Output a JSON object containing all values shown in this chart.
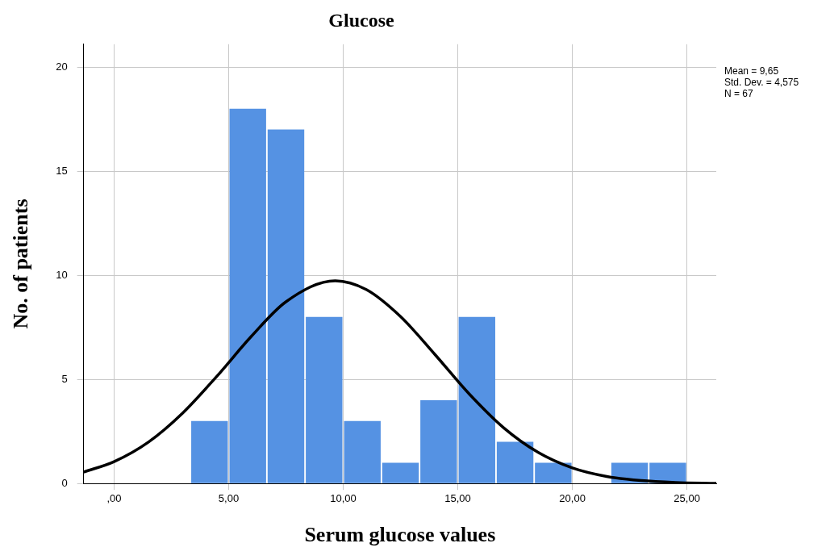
{
  "chart_data": {
    "type": "histogram",
    "title": "Glucose",
    "xlabel": "Serum glucose values",
    "ylabel": "No. of patients",
    "bins": [
      3.33,
      5,
      6.67,
      8.33,
      10,
      11.67,
      13.33,
      15,
      16.67,
      18.33,
      20,
      21.67,
      23.33,
      25
    ],
    "values": [
      3,
      18,
      17,
      8,
      3,
      1,
      4,
      8,
      2,
      1,
      0,
      1,
      1
    ],
    "color": "#5592e3",
    "series": [
      {
        "type": "line",
        "color": "#000000",
        "x": [
          -1.33,
          0,
          1.5,
          3,
          4.5,
          6,
          7.5,
          9.65,
          11,
          12.5,
          14,
          15.5,
          17,
          18.5,
          20,
          21.5,
          23,
          24.5,
          26.28
        ],
        "values": [
          0.55,
          1.05,
          1.99,
          3.39,
          5.17,
          7.08,
          8.73,
          9.74,
          9.32,
          8.02,
          6.2,
          4.3,
          2.68,
          1.5,
          0.75,
          0.34,
          0.14,
          0.05,
          0.01
        ]
      }
    ],
    "xlim": [
      -1.33,
      26.28
    ],
    "ylim": [
      0,
      21.1
    ],
    "xticks": [
      {
        "value": 0,
        "label": ",00"
      },
      {
        "value": 5,
        "label": "5,00"
      },
      {
        "value": 10,
        "label": "10,00"
      },
      {
        "value": 15,
        "label": "15,00"
      },
      {
        "value": 20,
        "label": "20,00"
      },
      {
        "value": 25,
        "label": "25,00"
      }
    ],
    "yticks": [
      0,
      5,
      10,
      15,
      20
    ],
    "grid": true,
    "annotations": [
      "Mean = 9,65",
      "Std. Dev. = 4,575",
      "N = 67"
    ]
  }
}
